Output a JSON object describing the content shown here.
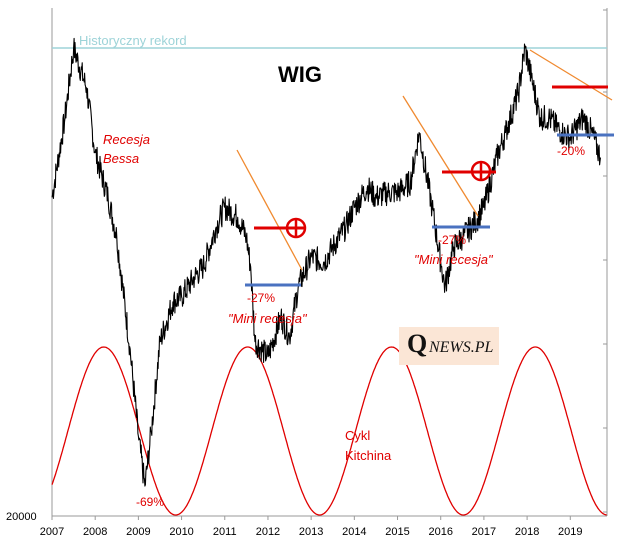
{
  "chart_data": {
    "type": "line",
    "title": "WIG",
    "x_ticks": [
      "2007",
      "2008",
      "2009",
      "2010",
      "2011",
      "2012",
      "2013",
      "2014",
      "2015",
      "2016",
      "2017",
      "2018",
      "2019"
    ],
    "y_ticks": [
      "20000"
    ],
    "series": [
      {
        "name": "",
        "x": [
          2007.0,
          2007.3,
          2007.5,
          2007.8,
          2008.0,
          2008.3,
          2008.5,
          2008.8,
          2009.0,
          2009.15,
          2009.3,
          2009.5,
          2009.8,
          2010.0,
          2010.3,
          2010.5,
          2010.8,
          2011.0,
          2011.3,
          2011.5,
          2011.6,
          2011.7,
          2012.0,
          2012.3,
          2012.5,
          2012.7,
          2013.0,
          2013.3,
          2013.5,
          2013.8,
          2014.0,
          2014.3,
          2014.5,
          2014.8,
          2015.0,
          2015.3,
          2015.5,
          2015.8,
          2016.0,
          2016.1,
          2016.3,
          2016.5,
          2016.8,
          2017.0,
          2017.3,
          2017.5,
          2017.8,
          2017.95,
          2018.1,
          2018.3,
          2018.5,
          2018.8,
          2019.0,
          2019.3,
          2019.5,
          2019.7
        ],
        "values": [
          52000,
          60000,
          67000,
          63000,
          56500,
          52000,
          48000,
          37000,
          28000,
          23000,
          28500,
          37500,
          41500,
          42000,
          44000,
          45000,
          49000,
          51000,
          50000,
          48000,
          45000,
          37500,
          36000,
          40000,
          38000,
          43000,
          46000,
          45500,
          47000,
          49000,
          51000,
          53000,
          52000,
          52500,
          52500,
          53500,
          58500,
          51000,
          45500,
          43000,
          47000,
          48000,
          49500,
          51000,
          56000,
          58500,
          62500,
          67000,
          64000,
          60000,
          60000,
          58500,
          58000,
          60000,
          58500,
          56000
        ]
      }
    ],
    "cycle": {
      "label": "Cykl Kitchina",
      "period_years": 3.33,
      "peaks": [
        2008.2,
        2011.0,
        2014.3,
        2017.7
      ],
      "troughs": [
        2009.3,
        2012.5,
        2015.9,
        2019.4
      ]
    },
    "annotations": {
      "record": "Historyczny rekord",
      "recession": [
        "Recesja",
        "Bessa"
      ],
      "crash_pct": "-69%",
      "mini1_pct": "-27%",
      "mini1_label": "\"Mini recesja\"",
      "mini2_pct": "-27%",
      "mini2_label": "\"Mini recesja\"",
      "drop2019_pct": "-20%"
    },
    "logo": {
      "q": "Q",
      "rest": "NEWS.PL"
    },
    "grid": false,
    "colors": {
      "price": "#000000",
      "cycle": "#e00000",
      "record": "#9dd3d8",
      "trend": "#f08a30",
      "resistance": "#e00000",
      "support": "#4a72c0",
      "label": "#e00000",
      "axis": "#999999"
    }
  }
}
